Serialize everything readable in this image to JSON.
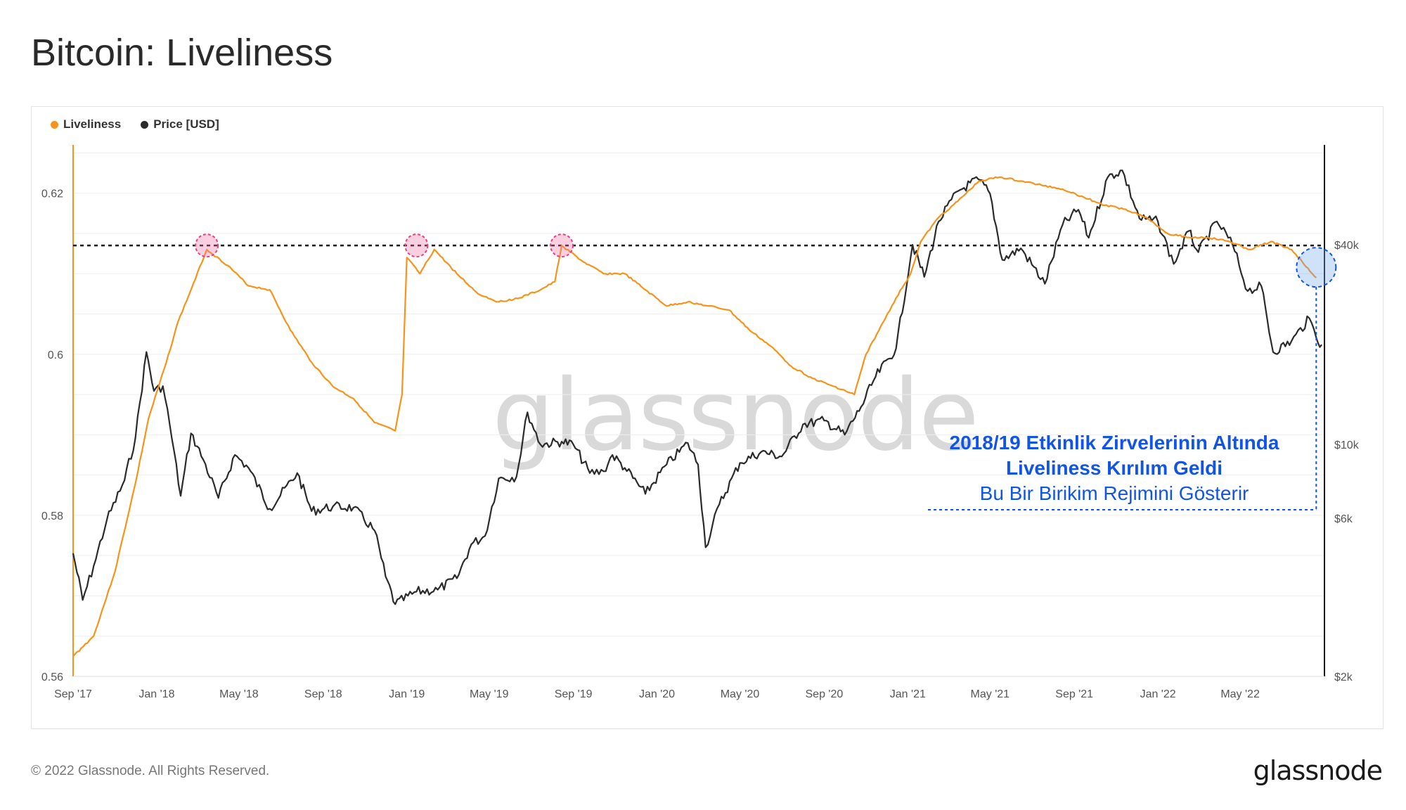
{
  "title": "Bitcoin: Liveliness",
  "legend": {
    "liveliness": "Liveliness",
    "price": "Price [USD]"
  },
  "watermark": "glassnode",
  "annotation": {
    "line1": "2018/19 Etkinlik Zirvelerinin Altında",
    "line2": "Liveliness Kırılım Geldi",
    "line3": "Bu Bir Birikim Rejimini Gösterir"
  },
  "footer": "© 2022 Glassnode. All Rights Reserved.",
  "brand": "glassnode",
  "colors": {
    "liveliness": "#f7931a",
    "price": "#2b2b2b",
    "annotation": "#1155e8",
    "peak_marker": "#e8417f"
  },
  "chart_data": {
    "type": "line",
    "x_range": [
      "2017-09-01",
      "2022-09-01"
    ],
    "x_ticks": [
      "Sep '17",
      "Jan '18",
      "May '18",
      "Sep '18",
      "Jan '19",
      "May '19",
      "Sep '19",
      "Jan '20",
      "May '20",
      "Sep '20",
      "Jan '21",
      "May '21",
      "Sep '21",
      "Jan '22",
      "May '22"
    ],
    "y_left": {
      "range": [
        0.56,
        0.626
      ],
      "ticks": [
        "0.56",
        "0.58",
        "0.6",
        "0.62"
      ]
    },
    "y_right": {
      "scale": "log",
      "range": [
        2000,
        80000
      ],
      "ticks": [
        {
          "value": 2000,
          "label": "$2k"
        },
        {
          "value": 6000,
          "label": "$6k"
        },
        {
          "value": 10000,
          "label": "$10k"
        },
        {
          "value": 40000,
          "label": "$40k"
        }
      ]
    },
    "reference_line": {
      "value": 0.6135,
      "style": "dashed"
    },
    "peak_markers": [
      "2018-03-15",
      "2019-01-15",
      "2019-08-15"
    ],
    "current_marker": "2022-08-20",
    "series": [
      {
        "name": "Liveliness",
        "axis": "left",
        "points": [
          [
            "2017-09-01",
            0.5625
          ],
          [
            "2017-10-01",
            0.565
          ],
          [
            "2017-11-01",
            0.573
          ],
          [
            "2017-12-01",
            0.584
          ],
          [
            "2017-12-20",
            0.592
          ],
          [
            "2018-01-15",
            0.599
          ],
          [
            "2018-02-01",
            0.604
          ],
          [
            "2018-02-20",
            0.608
          ],
          [
            "2018-03-15",
            0.613
          ],
          [
            "2018-04-15",
            0.611
          ],
          [
            "2018-05-15",
            0.6085
          ],
          [
            "2018-06-15",
            0.608
          ],
          [
            "2018-07-15",
            0.603
          ],
          [
            "2018-08-15",
            0.599
          ],
          [
            "2018-09-15",
            0.596
          ],
          [
            "2018-10-15",
            0.5945
          ],
          [
            "2018-11-15",
            0.5915
          ],
          [
            "2018-12-15",
            0.5905
          ],
          [
            "2018-12-25",
            0.595
          ],
          [
            "2019-01-01",
            0.612
          ],
          [
            "2019-01-20",
            0.61
          ],
          [
            "2019-02-10",
            0.613
          ],
          [
            "2019-03-15",
            0.61
          ],
          [
            "2019-04-15",
            0.6075
          ],
          [
            "2019-05-15",
            0.6065
          ],
          [
            "2019-06-15",
            0.607
          ],
          [
            "2019-07-15",
            0.608
          ],
          [
            "2019-08-05",
            0.609
          ],
          [
            "2019-08-15",
            0.6135
          ],
          [
            "2019-09-15",
            0.6115
          ],
          [
            "2019-10-15",
            0.61
          ],
          [
            "2019-11-15",
            0.61
          ],
          [
            "2019-12-15",
            0.608
          ],
          [
            "2020-01-15",
            0.606
          ],
          [
            "2020-02-15",
            0.6065
          ],
          [
            "2020-03-15",
            0.606
          ],
          [
            "2020-04-15",
            0.6055
          ],
          [
            "2020-05-15",
            0.603
          ],
          [
            "2020-06-15",
            0.601
          ],
          [
            "2020-07-15",
            0.5985
          ],
          [
            "2020-08-15",
            0.597
          ],
          [
            "2020-09-15",
            0.596
          ],
          [
            "2020-10-15",
            0.595
          ],
          [
            "2020-11-01",
            0.6
          ],
          [
            "2020-11-20",
            0.603
          ],
          [
            "2020-12-15",
            0.607
          ],
          [
            "2021-01-05",
            0.61
          ],
          [
            "2021-01-20",
            0.614
          ],
          [
            "2021-02-15",
            0.617
          ],
          [
            "2021-03-15",
            0.619
          ],
          [
            "2021-04-15",
            0.6215
          ],
          [
            "2021-05-15",
            0.622
          ],
          [
            "2021-06-15",
            0.6215
          ],
          [
            "2021-07-15",
            0.621
          ],
          [
            "2021-08-15",
            0.6205
          ],
          [
            "2021-09-15",
            0.6195
          ],
          [
            "2021-10-15",
            0.6185
          ],
          [
            "2021-11-15",
            0.618
          ],
          [
            "2021-12-15",
            0.617
          ],
          [
            "2022-01-15",
            0.615
          ],
          [
            "2022-02-15",
            0.6145
          ],
          [
            "2022-03-15",
            0.6145
          ],
          [
            "2022-04-15",
            0.614
          ],
          [
            "2022-05-15",
            0.613
          ],
          [
            "2022-06-15",
            0.614
          ],
          [
            "2022-07-15",
            0.613
          ],
          [
            "2022-08-20",
            0.6095
          ]
        ]
      },
      {
        "name": "Price [USD]",
        "axis": "right",
        "points": [
          [
            "2017-09-01",
            4700
          ],
          [
            "2017-09-15",
            3400
          ],
          [
            "2017-10-01",
            4300
          ],
          [
            "2017-10-20",
            5900
          ],
          [
            "2017-11-15",
            7800
          ],
          [
            "2017-12-01",
            10500
          ],
          [
            "2017-12-17",
            19000
          ],
          [
            "2017-12-28",
            14500
          ],
          [
            "2018-01-10",
            15000
          ],
          [
            "2018-01-20",
            11500
          ],
          [
            "2018-02-05",
            7000
          ],
          [
            "2018-02-20",
            10800
          ],
          [
            "2018-03-10",
            9000
          ],
          [
            "2018-04-01",
            6900
          ],
          [
            "2018-04-25",
            9300
          ],
          [
            "2018-05-15",
            8500
          ],
          [
            "2018-06-15",
            6400
          ],
          [
            "2018-07-25",
            8200
          ],
          [
            "2018-08-15",
            6300
          ],
          [
            "2018-09-15",
            6500
          ],
          [
            "2018-10-15",
            6450
          ],
          [
            "2018-11-15",
            5500
          ],
          [
            "2018-12-01",
            4000
          ],
          [
            "2018-12-15",
            3300
          ],
          [
            "2019-01-15",
            3600
          ],
          [
            "2019-02-15",
            3650
          ],
          [
            "2019-03-15",
            3950
          ],
          [
            "2019-04-05",
            5000
          ],
          [
            "2019-04-25",
            5300
          ],
          [
            "2019-05-15",
            7900
          ],
          [
            "2019-06-10",
            8000
          ],
          [
            "2019-06-26",
            12500
          ],
          [
            "2019-07-15",
            10000
          ],
          [
            "2019-08-15",
            10200
          ],
          [
            "2019-09-01",
            10000
          ],
          [
            "2019-09-25",
            8200
          ],
          [
            "2019-10-15",
            8300
          ],
          [
            "2019-10-28",
            9300
          ],
          [
            "2019-11-15",
            8500
          ],
          [
            "2019-12-15",
            7100
          ],
          [
            "2020-01-15",
            8700
          ],
          [
            "2020-02-15",
            10100
          ],
          [
            "2020-03-01",
            8700
          ],
          [
            "2020-03-12",
            4900
          ],
          [
            "2020-04-01",
            6600
          ],
          [
            "2020-05-01",
            8800
          ],
          [
            "2020-06-01",
            9500
          ],
          [
            "2020-07-01",
            9200
          ],
          [
            "2020-08-01",
            11500
          ],
          [
            "2020-09-01",
            11800
          ],
          [
            "2020-10-01",
            10700
          ],
          [
            "2020-10-25",
            13000
          ],
          [
            "2020-11-15",
            16000
          ],
          [
            "2020-12-15",
            19500
          ],
          [
            "2021-01-08",
            40000
          ],
          [
            "2021-01-25",
            32000
          ],
          [
            "2021-02-15",
            47000
          ],
          [
            "2021-03-15",
            58000
          ],
          [
            "2021-04-14",
            63000
          ],
          [
            "2021-05-01",
            57000
          ],
          [
            "2021-05-19",
            36000
          ],
          [
            "2021-06-15",
            39000
          ],
          [
            "2021-07-20",
            30500
          ],
          [
            "2021-08-15",
            46000
          ],
          [
            "2021-09-07",
            51000
          ],
          [
            "2021-09-22",
            42000
          ],
          [
            "2021-10-20",
            64000
          ],
          [
            "2021-11-10",
            67000
          ],
          [
            "2021-12-05",
            48000
          ],
          [
            "2022-01-01",
            47000
          ],
          [
            "2022-01-24",
            35000
          ],
          [
            "2022-02-15",
            44000
          ],
          [
            "2022-03-01",
            38000
          ],
          [
            "2022-03-28",
            47000
          ],
          [
            "2022-04-20",
            40000
          ],
          [
            "2022-05-12",
            29000
          ],
          [
            "2022-06-01",
            30000
          ],
          [
            "2022-06-18",
            19000
          ],
          [
            "2022-07-15",
            20500
          ],
          [
            "2022-08-10",
            24000
          ],
          [
            "2022-08-20",
            21000
          ],
          [
            "2022-08-28",
            20000
          ]
        ]
      }
    ]
  }
}
